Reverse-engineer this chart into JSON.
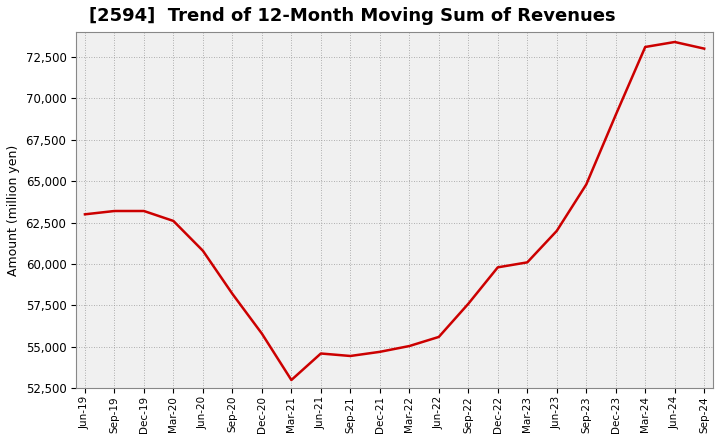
{
  "title": "[2594]  Trend of 12-Month Moving Sum of Revenues",
  "ylabel": "Amount (million yen)",
  "line_color": "#cc0000",
  "line_width": 1.8,
  "background_color": "#ffffff",
  "plot_bg_color": "#f0f0f0",
  "grid_color": "#999999",
  "ylim": [
    52500,
    74000
  ],
  "yticks": [
    52500,
    55000,
    57500,
    60000,
    62500,
    65000,
    67500,
    70000,
    72500
  ],
  "x_labels": [
    "Jun-19",
    "Sep-19",
    "Dec-19",
    "Mar-20",
    "Jun-20",
    "Sep-20",
    "Dec-20",
    "Mar-21",
    "Jun-21",
    "Sep-21",
    "Dec-21",
    "Mar-22",
    "Jun-22",
    "Sep-22",
    "Dec-22",
    "Mar-23",
    "Jun-23",
    "Sep-23",
    "Dec-23",
    "Mar-24",
    "Jun-24",
    "Sep-24"
  ],
  "values": [
    63000,
    63200,
    63200,
    62600,
    60800,
    58200,
    55800,
    53000,
    54600,
    54450,
    54700,
    55050,
    55600,
    57600,
    59800,
    60100,
    62000,
    64800,
    69000,
    73100,
    73400,
    73000
  ],
  "title_fontsize": 13,
  "ylabel_fontsize": 9,
  "ytick_fontsize": 8.5,
  "xtick_fontsize": 7.5
}
